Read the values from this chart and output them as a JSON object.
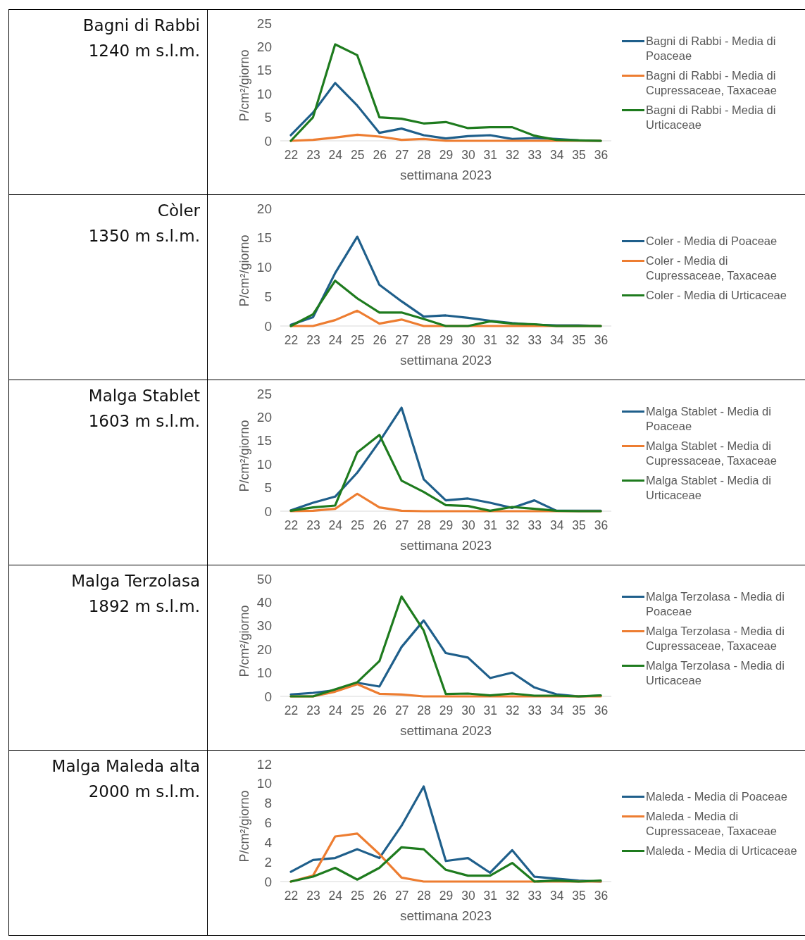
{
  "chart_data": [
    {
      "type": "line",
      "title": "Bagni di Rabbi",
      "subtitle": "1240 m s.l.m.",
      "xlabel": "settimana 2023",
      "ylabel": "P/cm²/giorno",
      "categories": [
        "22",
        "23",
        "24",
        "25",
        "26",
        "27",
        "28",
        "29",
        "30",
        "31",
        "32",
        "33",
        "34",
        "35",
        "36"
      ],
      "ylim": [
        0,
        25
      ],
      "yticks": [
        0,
        5,
        10,
        15,
        20,
        25
      ],
      "legend": "right",
      "series": [
        {
          "name": "Bagni di Rabbi - Media di Poaceae",
          "color": "#1f5f8b",
          "values": [
            1.2,
            6,
            12.3,
            7.5,
            1.7,
            2.6,
            1.2,
            0.5,
            1,
            1.2,
            0.4,
            0.6,
            0.4,
            0.1,
            0
          ]
        },
        {
          "name": "Bagni di Rabbi - Media di Cupressaceae, Taxaceae",
          "color": "#ed7d31",
          "values": [
            0,
            0.2,
            0.7,
            1.3,
            0.9,
            0.2,
            0.4,
            0,
            0,
            0,
            0,
            0,
            0,
            0,
            0
          ]
        },
        {
          "name": "Bagni di Rabbi - Media di Urticaceae",
          "color": "#1e7b1e",
          "values": [
            0,
            5,
            20.5,
            18.2,
            5,
            4.7,
            3.7,
            4,
            2.7,
            2.9,
            2.9,
            1.1,
            0.2,
            0.1,
            0
          ]
        }
      ]
    },
    {
      "type": "line",
      "title": "Còler",
      "subtitle": "1350 m s.l.m.",
      "xlabel": "settimana 2023",
      "ylabel": "P/cm²/giorno",
      "categories": [
        "22",
        "23",
        "24",
        "25",
        "26",
        "27",
        "28",
        "29",
        "30",
        "31",
        "32",
        "33",
        "34",
        "35",
        "36"
      ],
      "ylim": [
        0,
        20
      ],
      "yticks": [
        0,
        5,
        10,
        15,
        20
      ],
      "legend": "right",
      "series": [
        {
          "name": "Coler - Media di Poaceae",
          "color": "#1f5f8b",
          "values": [
            0.2,
            1.5,
            9,
            15.2,
            7,
            4.2,
            1.6,
            1.8,
            1.4,
            0.9,
            0.5,
            0.2,
            0.1,
            0.1,
            0
          ]
        },
        {
          "name": "Coler - Media di Cupressaceae, Taxaceae",
          "color": "#ed7d31",
          "values": [
            0,
            0,
            1,
            2.6,
            0.4,
            1.1,
            0,
            0,
            0,
            0,
            0,
            0,
            0,
            0,
            0
          ]
        },
        {
          "name": "Coler - Media di Urticaceae",
          "color": "#1e7b1e",
          "values": [
            0,
            2,
            7.7,
            4.7,
            2.3,
            2.3,
            1.2,
            0,
            0,
            0.8,
            0.4,
            0.3,
            0,
            0,
            0
          ]
        }
      ]
    },
    {
      "type": "line",
      "title": "Malga Stablet",
      "subtitle": "1603 m s.l.m.",
      "xlabel": "settimana 2023",
      "ylabel": "P/cm²/giorno",
      "categories": [
        "22",
        "23",
        "24",
        "25",
        "26",
        "27",
        "28",
        "29",
        "30",
        "31",
        "32",
        "33",
        "34",
        "35",
        "36"
      ],
      "ylim": [
        0,
        25
      ],
      "yticks": [
        0,
        5,
        10,
        15,
        20,
        25
      ],
      "legend": "right",
      "series": [
        {
          "name": "Malga Stablet - Media di Poaceae",
          "color": "#1f5f8b",
          "values": [
            0.2,
            1.8,
            3.1,
            8.2,
            14.8,
            22,
            6.8,
            2.3,
            2.7,
            1.8,
            0.7,
            2.3,
            0.1,
            0.1,
            0.1
          ]
        },
        {
          "name": "Malga Stablet - Media di Cupressaceae, Taxaceae",
          "color": "#ed7d31",
          "values": [
            0,
            0.1,
            0.5,
            3.7,
            0.8,
            0.1,
            0,
            0,
            0,
            0,
            0,
            0,
            0,
            0,
            0
          ]
        },
        {
          "name": "Malga Stablet - Media di Urticaceae",
          "color": "#1e7b1e",
          "values": [
            0.1,
            0.8,
            1.2,
            12.5,
            16.2,
            6.5,
            4.1,
            1.3,
            1.1,
            0.1,
            0.9,
            0.5,
            0.1,
            0,
            0
          ]
        }
      ]
    },
    {
      "type": "line",
      "title": "Malga Terzolasa",
      "subtitle": "1892 m s.l.m.",
      "xlabel": "settimana 2023",
      "ylabel": "P/cm²/giorno",
      "categories": [
        "22",
        "23",
        "24",
        "25",
        "26",
        "27",
        "28",
        "29",
        "30",
        "31",
        "32",
        "33",
        "34",
        "35",
        "36"
      ],
      "ylim": [
        0,
        50
      ],
      "yticks": [
        0,
        10,
        20,
        30,
        40,
        50
      ],
      "legend": "right",
      "series": [
        {
          "name": "Malga Terzolasa - Media di Poaceae",
          "color": "#1f5f8b",
          "values": [
            0.8,
            1.5,
            2.6,
            5.8,
            4.2,
            21,
            32.3,
            18.4,
            16.5,
            7.8,
            10.1,
            3.8,
            0.9,
            0,
            0.3
          ]
        },
        {
          "name": "Malga Terzolasa - Media di Cupressaceae, Taxaceae",
          "color": "#ed7d31",
          "values": [
            0,
            0,
            2,
            5.2,
            1.1,
            0.8,
            0,
            0,
            0,
            0,
            0,
            0,
            0,
            0,
            0
          ]
        },
        {
          "name": "Malga Terzolasa - Media di Urticaceae",
          "color": "#1e7b1e",
          "values": [
            0,
            0,
            3,
            6,
            15,
            42.5,
            28,
            1,
            1.2,
            0.4,
            1.2,
            0.3,
            0.3,
            0,
            0.4
          ]
        }
      ]
    },
    {
      "type": "line",
      "title": "Malga Maleda alta",
      "subtitle": "2000 m s.l.m.",
      "xlabel": "settimana 2023",
      "ylabel": "P/cm²/giorno",
      "categories": [
        "22",
        "23",
        "24",
        "25",
        "26",
        "27",
        "28",
        "29",
        "30",
        "31",
        "32",
        "33",
        "34",
        "35",
        "36"
      ],
      "ylim": [
        0,
        12
      ],
      "yticks": [
        0,
        2,
        4,
        6,
        8,
        10,
        12
      ],
      "legend": "right",
      "series": [
        {
          "name": "Maleda - Media di Poaceae",
          "color": "#1f5f8b",
          "values": [
            1,
            2.2,
            2.4,
            3.3,
            2.4,
            5.7,
            9.7,
            2.1,
            2.4,
            0.9,
            3.2,
            0.5,
            0.3,
            0.1,
            0
          ]
        },
        {
          "name": "Maleda - Media di Cupressaceae, Taxaceae",
          "color": "#ed7d31",
          "values": [
            0,
            0.6,
            4.6,
            4.9,
            2.8,
            0.4,
            0,
            0,
            0,
            0,
            0,
            0,
            0,
            0,
            0
          ]
        },
        {
          "name": "Maleda - Media di Urticaceae",
          "color": "#1e7b1e",
          "values": [
            0,
            0.5,
            1.4,
            0.2,
            1.4,
            3.5,
            3.3,
            1.2,
            0.6,
            0.6,
            1.9,
            0,
            0.1,
            0,
            0.1
          ]
        }
      ]
    }
  ]
}
